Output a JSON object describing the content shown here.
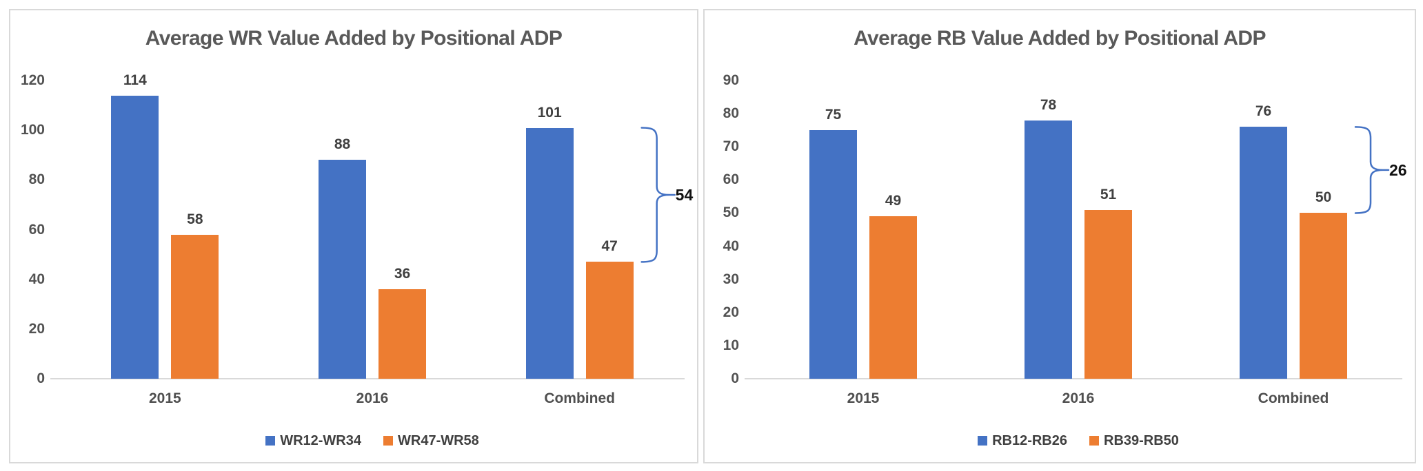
{
  "page": {
    "background": "#ffffff",
    "panel_border_color": "#d9d9d9"
  },
  "colors": {
    "blue": "#4472c4",
    "orange": "#ed7d31",
    "axis_line": "#d9d9d9",
    "title_text": "#595959",
    "tick_text": "#525252",
    "label_text": "#404040",
    "brace": "#4472c4",
    "annotation_text": "#111111"
  },
  "chart_data": [
    {
      "type": "bar",
      "title": "Average WR Value Added by Positional ADP",
      "categories": [
        "2015",
        "2016",
        "Combined"
      ],
      "series": [
        {
          "name": "WR12-WR34",
          "color_key": "blue",
          "values": [
            114,
            88,
            101
          ]
        },
        {
          "name": "WR47-WR58",
          "color_key": "orange",
          "values": [
            58,
            36,
            47
          ]
        }
      ],
      "ylim": [
        0,
        120
      ],
      "ytick_step": 20,
      "yticks": [
        0,
        20,
        40,
        60,
        80,
        100,
        120
      ],
      "grid": false,
      "data_labels": true,
      "legend_position": "bottom",
      "annotation": {
        "text": "54",
        "category": "Combined",
        "category_index": 2,
        "from_value": 101,
        "to_value": 47
      }
    },
    {
      "type": "bar",
      "title": "Average RB Value Added by Positional ADP",
      "categories": [
        "2015",
        "2016",
        "Combined"
      ],
      "series": [
        {
          "name": "RB12-RB26",
          "color_key": "blue",
          "values": [
            75,
            78,
            76
          ]
        },
        {
          "name": "RB39-RB50",
          "color_key": "orange",
          "values": [
            49,
            51,
            50
          ]
        }
      ],
      "ylim": [
        0,
        90
      ],
      "ytick_step": 10,
      "yticks": [
        0,
        10,
        20,
        30,
        40,
        50,
        60,
        70,
        80,
        90
      ],
      "grid": false,
      "data_labels": true,
      "legend_position": "bottom",
      "annotation": {
        "text": "26",
        "category": "Combined",
        "category_index": 2,
        "from_value": 76,
        "to_value": 50
      }
    }
  ]
}
